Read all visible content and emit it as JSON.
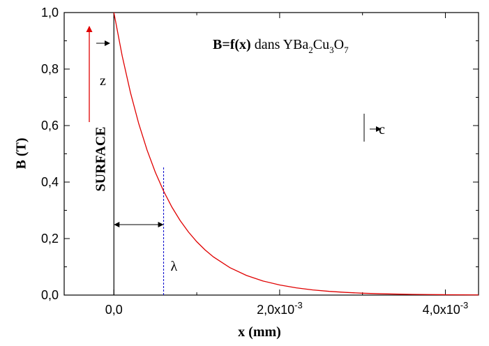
{
  "chart_data": {
    "type": "line",
    "annotation": [
      {
        "text": "B=f(x)",
        "bold": true
      },
      {
        "text": " dans YBa"
      },
      {
        "text": "2",
        "sub": true
      },
      {
        "text": "Cu"
      },
      {
        "text": "3",
        "sub": true
      },
      {
        "text": "O"
      },
      {
        "text": "7",
        "sub": true
      }
    ],
    "x_label": "x (mm)",
    "y_label": "B (T)",
    "surface_label": "SURFACE",
    "z_label": "z",
    "c_label": "c",
    "lambda_label": "λ",
    "lambda_x": 0.0006,
    "x": [
      0,
      0.0001,
      0.0002,
      0.0003,
      0.0004,
      0.0005,
      0.0006,
      0.0007,
      0.0008,
      0.0009,
      0.001,
      0.0011,
      0.0012,
      0.0014,
      0.0016,
      0.0018,
      0.002,
      0.0022,
      0.0024,
      0.0026,
      0.0028,
      0.003,
      0.0032,
      0.0034,
      0.0036,
      0.0038,
      0.004,
      0.0042,
      0.0044
    ],
    "series": [
      {
        "color": "#e00000",
        "values": [
          1,
          0.8465,
          0.7165,
          0.6065,
          0.5134,
          0.4346,
          0.3679,
          0.3114,
          0.2636,
          0.2231,
          0.1889,
          0.1599,
          0.1353,
          0.097,
          0.0695,
          0.0498,
          0.0357,
          0.0256,
          0.0183,
          0.0131,
          0.0094,
          0.0067,
          0.0048,
          0.0035,
          0.0025,
          0.0018,
          0.0013,
          0.0009,
          0.0007
        ]
      }
    ],
    "xlim": [
      -0.0006,
      0.0044
    ],
    "ylim": [
      0,
      1
    ],
    "xticks": [
      {
        "value": 0,
        "label": "0,0"
      },
      {
        "value": 0.002,
        "label": "2,0x10",
        "exponent": "-3"
      },
      {
        "value": 0.004,
        "label": "4,0x10",
        "exponent": "-3"
      }
    ],
    "minor_xticks": [
      0.001,
      0.003
    ],
    "yticks": [
      {
        "value": 0,
        "label": "0,0"
      },
      {
        "value": 0.2,
        "label": "0,2"
      },
      {
        "value": 0.4,
        "label": "0,4"
      },
      {
        "value": 0.6,
        "label": "0,6"
      },
      {
        "value": 0.8,
        "label": "0,8"
      },
      {
        "value": 1,
        "label": "1,0"
      }
    ],
    "minor_yticks": [
      0.1,
      0.3,
      0.5,
      0.7,
      0.9
    ],
    "grid": false
  }
}
